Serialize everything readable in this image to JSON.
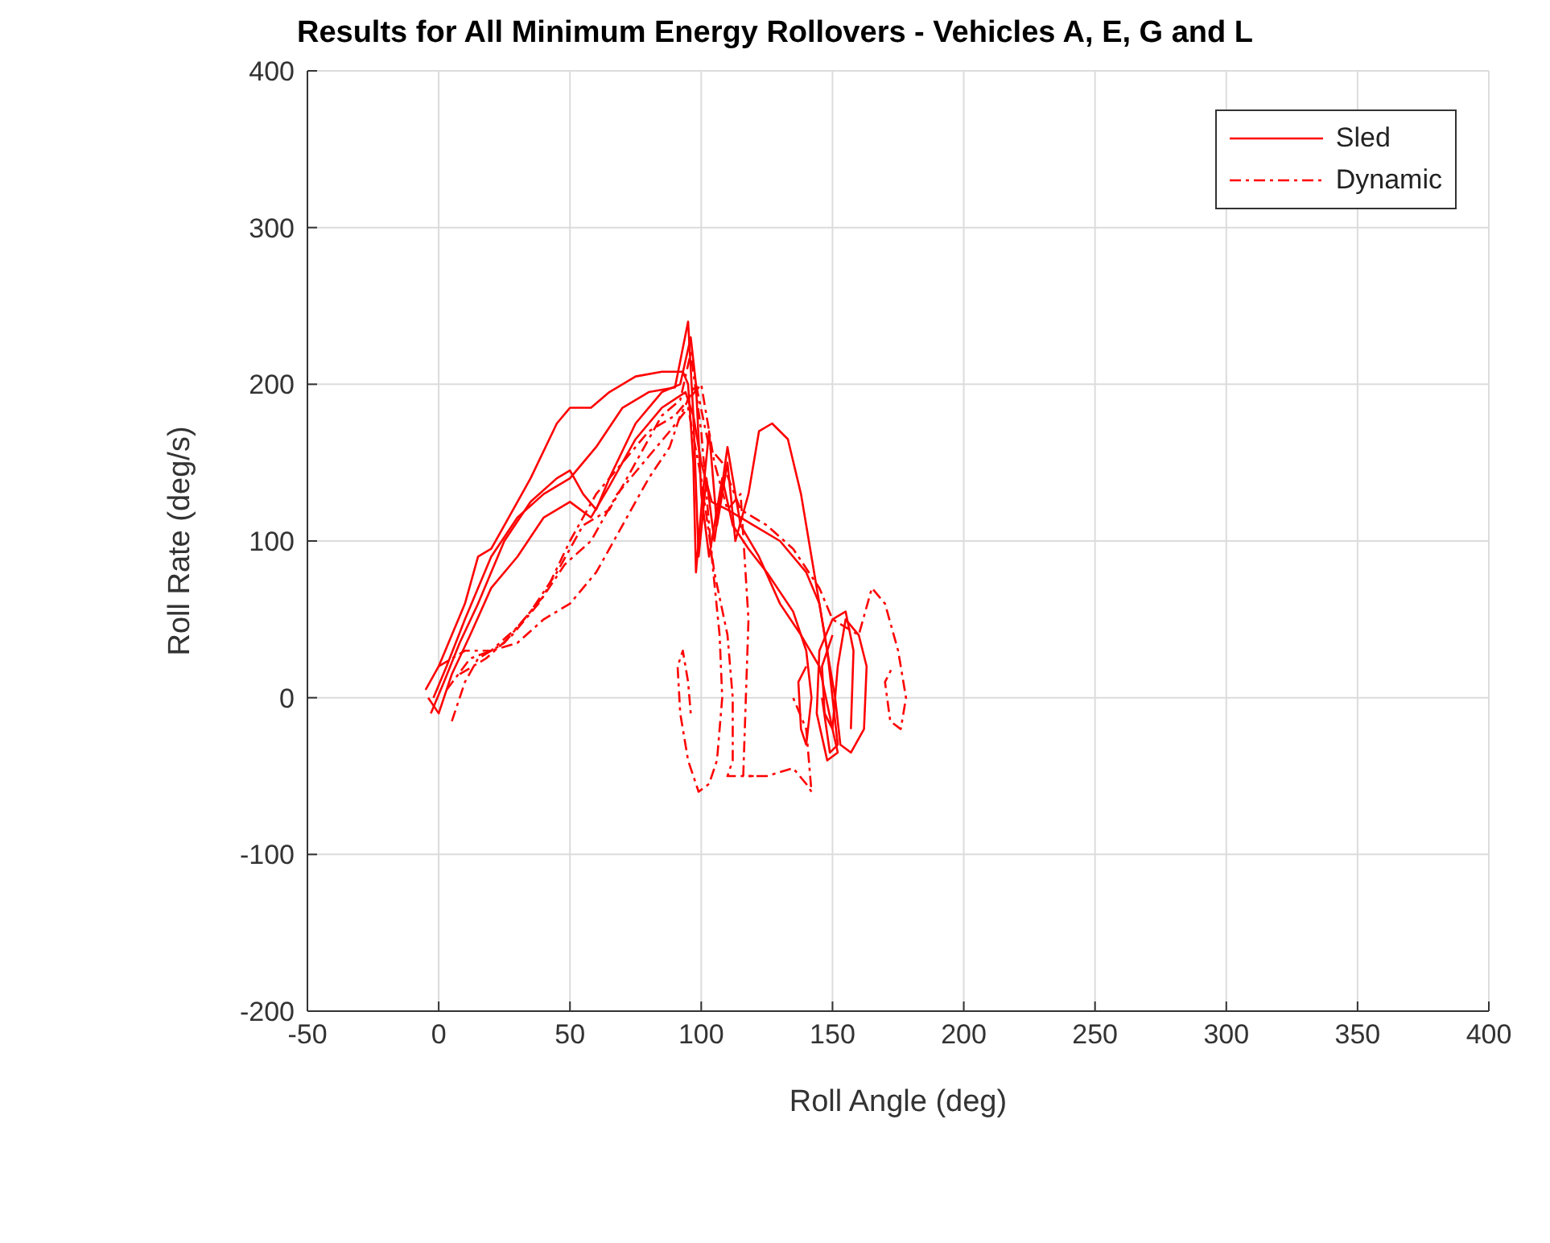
{
  "chart_data": {
    "type": "line",
    "title": "Results for All Minimum Energy Rollovers - Vehicles A, E, G and L",
    "xlabel": "Roll Angle (deg)",
    "ylabel": "Roll Rate (deg/s)",
    "xlim": [
      -50,
      400
    ],
    "ylim": [
      -200,
      400
    ],
    "xticks": [
      -50,
      0,
      50,
      100,
      150,
      200,
      250,
      300,
      350,
      400
    ],
    "yticks": [
      -200,
      -100,
      0,
      100,
      200,
      300,
      400
    ],
    "grid": true,
    "legend": "top right",
    "marker": "none",
    "series": [
      {
        "name": "Sled",
        "color": "#ff0000",
        "line_style": "solid",
        "x": [
          -5,
          0,
          5,
          10,
          15,
          20,
          25,
          35,
          45,
          50,
          58,
          65,
          75,
          85,
          93,
          95,
          97,
          98,
          100,
          103,
          106,
          110,
          113,
          118,
          122,
          127,
          133,
          138,
          141,
          143,
          145,
          148,
          151,
          153,
          157,
          162,
          163,
          160,
          155,
          152,
          150,
          147,
          146,
          150
        ],
        "values": [
          5,
          20,
          40,
          60,
          90,
          95,
          110,
          140,
          175,
          185,
          185,
          195,
          205,
          208,
          208,
          200,
          150,
          80,
          120,
          170,
          110,
          150,
          100,
          130,
          170,
          175,
          165,
          130,
          100,
          80,
          60,
          30,
          0,
          -30,
          -35,
          -20,
          20,
          40,
          50,
          20,
          -20,
          -10,
          20,
          40
        ]
      },
      {
        "color": "#ff0000",
        "line_style": "solid",
        "x": [
          -3,
          2,
          8,
          15,
          25,
          35,
          45,
          50,
          55,
          60,
          65,
          75,
          85,
          92,
          96,
          98,
          100,
          103,
          108,
          112,
          118,
          125,
          135,
          140,
          142,
          140,
          138,
          137,
          140
        ],
        "values": [
          -10,
          10,
          35,
          60,
          100,
          125,
          140,
          145,
          130,
          120,
          140,
          175,
          195,
          200,
          230,
          200,
          130,
          90,
          140,
          110,
          95,
          80,
          55,
          30,
          0,
          -30,
          -20,
          10,
          20
        ]
      },
      {
        "color": "#ff0000",
        "line_style": "solid",
        "x": [
          -2,
          3,
          10,
          20,
          30,
          40,
          50,
          60,
          70,
          80,
          90,
          95,
          97,
          99,
          102,
          105,
          110,
          115,
          122,
          130,
          138,
          145,
          150,
          152,
          148,
          144,
          145,
          150,
          155,
          158,
          157
        ],
        "values": [
          0,
          20,
          50,
          90,
          115,
          130,
          140,
          160,
          185,
          195,
          198,
          240,
          180,
          90,
          140,
          100,
          160,
          110,
          90,
          60,
          40,
          20,
          -20,
          -35,
          -40,
          -10,
          30,
          50,
          55,
          30,
          -20
        ]
      },
      {
        "color": "#ff0000",
        "line_style": "solid",
        "x": [
          -4,
          0,
          5,
          12,
          20,
          30,
          40,
          50,
          58,
          65,
          75,
          85,
          94,
          97,
          100,
          104,
          110,
          120,
          130,
          140,
          145,
          148,
          150,
          152,
          149,
          146
        ],
        "values": [
          0,
          -10,
          15,
          40,
          70,
          90,
          115,
          125,
          115,
          135,
          165,
          185,
          195,
          180,
          150,
          125,
          120,
          110,
          100,
          80,
          60,
          30,
          0,
          -30,
          -35,
          0
        ]
      },
      {
        "name": "Dynamic",
        "color": "#ff0000",
        "line_style": "dashed",
        "x": [
          5,
          10,
          15,
          25,
          35,
          45,
          55,
          65,
          75,
          85,
          92,
          96,
          100,
          104,
          107,
          108,
          106,
          103,
          99,
          95,
          92,
          91,
          93,
          95,
          96
        ],
        "values": [
          -15,
          10,
          25,
          35,
          55,
          80,
          110,
          120,
          150,
          180,
          190,
          220,
          170,
          90,
          40,
          0,
          -40,
          -55,
          -60,
          -40,
          -10,
          20,
          30,
          10,
          -10
        ]
      },
      {
        "color": "#ff0000",
        "line_style": "dashed",
        "x": [
          0,
          10,
          20,
          30,
          40,
          50,
          60,
          70,
          80,
          90,
          95,
          100,
          105,
          110,
          115,
          118,
          117,
          116,
          125,
          135,
          140,
          142,
          140,
          135
        ],
        "values": [
          20,
          30,
          30,
          45,
          65,
          100,
          130,
          150,
          170,
          180,
          190,
          200,
          150,
          120,
          130,
          50,
          0,
          -50,
          -50,
          -45,
          -55,
          -60,
          -20,
          0
        ]
      },
      {
        "color": "#ff0000",
        "line_style": "dashed",
        "x": [
          3,
          12,
          20,
          30,
          40,
          50,
          60,
          70,
          80,
          88,
          92,
          98,
          103,
          108,
          115,
          125,
          135,
          145,
          150,
          160,
          165,
          170,
          175,
          178,
          176,
          172,
          170,
          173
        ],
        "values": [
          5,
          25,
          30,
          35,
          50,
          60,
          80,
          110,
          140,
          160,
          180,
          200,
          160,
          150,
          120,
          110,
          95,
          70,
          50,
          40,
          70,
          60,
          30,
          0,
          -20,
          -15,
          10,
          20
        ]
      },
      {
        "color": "#ff0000",
        "line_style": "dashed",
        "x": [
          8,
          18,
          28,
          38,
          48,
          58,
          68,
          78,
          88,
          95,
          100,
          105,
          110,
          112,
          112,
          110,
          120
        ],
        "values": [
          15,
          25,
          40,
          60,
          85,
          100,
          130,
          150,
          170,
          185,
          140,
          80,
          40,
          0,
          -40,
          -50,
          -50
        ]
      }
    ]
  }
}
